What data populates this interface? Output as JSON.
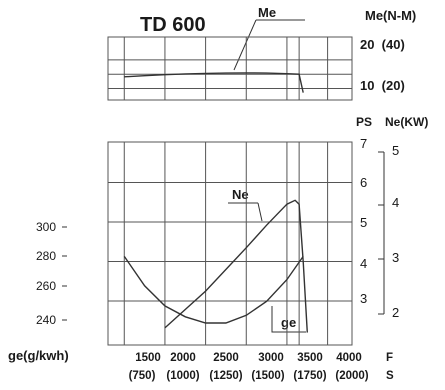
{
  "chart_data": [
    {
      "type": "line",
      "title": "TD 600",
      "x_tick_labels": [
        "1500",
        "2000",
        "2500",
        "3000",
        "3500",
        "4000"
      ],
      "x_tick_labels_secondary": [
        "(750)",
        "(1000)",
        "(1250)",
        "(1500)",
        "(1750)",
        "(2000)"
      ],
      "x_axis_letters": [
        "F",
        "S"
      ],
      "xlim": [
        1300,
        4300
      ],
      "grid": true,
      "series": [
        {
          "name": "Me",
          "color": "#333333",
          "x": [
            1500,
            1750,
            2000,
            2250,
            2500,
            2750,
            3000,
            3250,
            3500,
            3650,
            3700
          ],
          "y": [
            14.1,
            14.5,
            14.85,
            15.1,
            15.3,
            15.4,
            15.45,
            15.4,
            15.2,
            15.0,
            8.6
          ]
        }
      ],
      "y_axis_label": "Me(N-M)",
      "y_tick_labels": [
        "20  (40)",
        "10  (20)"
      ],
      "y_ticks": [
        20,
        10
      ],
      "ylim": [
        6,
        28
      ]
    },
    {
      "type": "line",
      "x_tick_labels": [
        "1500",
        "2000",
        "2500",
        "3000",
        "3500",
        "4000"
      ],
      "x_tick_labels_secondary": [
        "(750)",
        "(1000)",
        "(1250)",
        "(1500)",
        "(1750)",
        "(2000)"
      ],
      "x_axis_letters": [
        "F",
        "S"
      ],
      "xlim": [
        1300,
        4300
      ],
      "grid": true,
      "series": [
        {
          "name": "Ne",
          "color": "#333333",
          "x": [
            2000,
            2500,
            3000,
            3250,
            3500,
            3600,
            3650,
            3700,
            3750
          ],
          "y": [
            2.32,
            3.25,
            4.35,
            4.92,
            5.45,
            5.55,
            5.45,
            4.0,
            2.2
          ]
        },
        {
          "name": "ge",
          "color": "#333333",
          "x": [
            1500,
            1750,
            2000,
            2250,
            2500,
            2750,
            3000,
            3250,
            3500,
            3700
          ],
          "y": [
            283,
            264,
            251,
            244,
            240,
            240,
            245,
            254,
            268,
            283
          ]
        }
      ],
      "ne_axis": {
        "label_ps": "PS",
        "label_kw": "Ne(KW)",
        "ps_ticks": [
          "7",
          "6",
          "5",
          "4",
          "3"
        ],
        "kw_ticks": [
          "5",
          "4",
          "3",
          "2"
        ]
      },
      "ge_axis": {
        "label": "ge(g/kwh)",
        "ticks": [
          "300",
          "280",
          "260",
          "240"
        ]
      }
    }
  ]
}
